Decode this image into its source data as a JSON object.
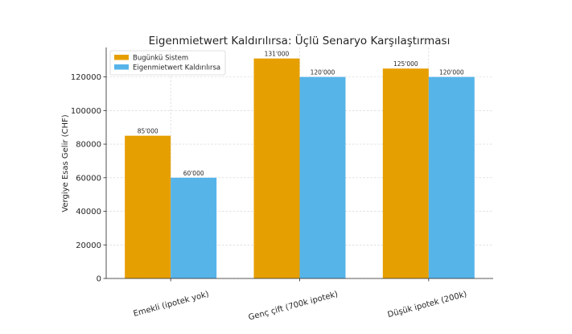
{
  "chart_data": {
    "type": "bar",
    "title": "Eigenmietwert Kaldırılırsa: Üçlü Senaryo Karşılaştırması",
    "xlabel": "",
    "ylabel": "Vergiye Esas Gelir (CHF)",
    "categories": [
      "Emekli (ipotek yok)",
      "Genç çift (700k ipotek)",
      "Düşük ipotek (200k)"
    ],
    "series": [
      {
        "name": "Bugünkü Sistem",
        "values": [
          85000,
          131000,
          125000
        ],
        "labels": [
          "85'000",
          "131'000",
          "125'000"
        ],
        "color": "#E69F00"
      },
      {
        "name": "Eigenmietwert Kaldırılırsa",
        "values": [
          60000,
          120000,
          120000
        ],
        "labels": [
          "60'000",
          "120'000",
          "120'000"
        ],
        "color": "#56B4E9"
      }
    ],
    "ylim": [
      0,
      137550
    ],
    "yticks": [
      0,
      20000,
      40000,
      60000,
      80000,
      100000,
      120000
    ],
    "grid": true,
    "legend_position": "top-left"
  }
}
